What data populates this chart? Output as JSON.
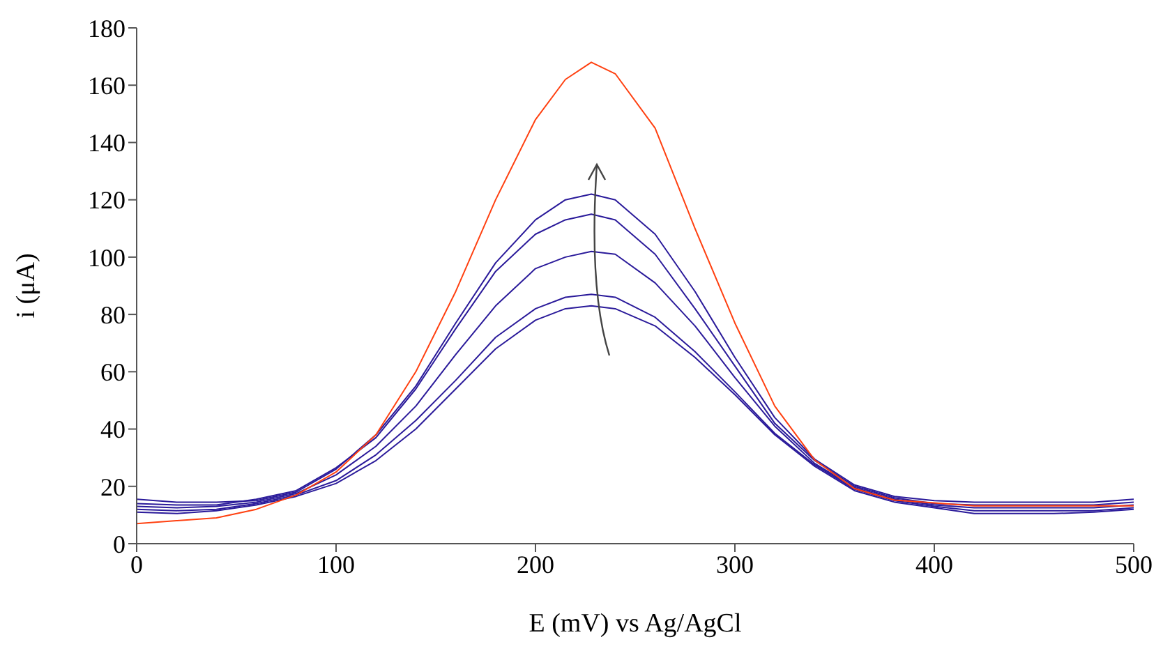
{
  "chart_data": {
    "type": "line",
    "xlabel": "E (mV) vs Ag/AgCl",
    "ylabel": "i (μA)",
    "x": [
      0,
      20,
      40,
      60,
      80,
      100,
      120,
      140,
      160,
      180,
      200,
      215,
      228,
      240,
      260,
      280,
      300,
      320,
      340,
      360,
      380,
      400,
      420,
      440,
      460,
      480,
      500
    ],
    "series": [
      {
        "color": "#2a1a9a",
        "values": [
          15.5,
          14.5,
          14.5,
          15,
          18,
          26,
          38,
          55,
          77,
          98,
          113,
          120,
          122,
          120,
          108,
          88,
          65,
          44,
          29.5,
          20.5,
          16.5,
          15,
          14.5,
          14.5,
          14.5,
          14.5,
          15.5
        ]
      },
      {
        "color": "#2a1a9a",
        "values": [
          14,
          13.5,
          13.5,
          15.5,
          18.5,
          26.5,
          37,
          54,
          75,
          95,
          108,
          113,
          115,
          113,
          101,
          82,
          62,
          42,
          29,
          20,
          16,
          14,
          13.5,
          13.5,
          13.5,
          13.5,
          14.5
        ]
      },
      {
        "color": "#2a1a9a",
        "values": [
          13,
          12.5,
          13,
          14.5,
          17.5,
          24,
          34,
          48,
          66,
          83,
          96,
          100,
          102,
          101,
          91,
          76,
          58,
          41,
          28,
          19.5,
          15.5,
          13.5,
          12.5,
          12.5,
          12.5,
          12.5,
          13.5
        ]
      },
      {
        "color": "#2a1a9a",
        "values": [
          12,
          11.5,
          12,
          14,
          17,
          22,
          31,
          43,
          57,
          72,
          82,
          86,
          87,
          86,
          79,
          67,
          53,
          38.5,
          27.5,
          19,
          15,
          13,
          11.5,
          11.5,
          11.5,
          11.5,
          12.5
        ]
      },
      {
        "color": "#2a1a9a",
        "values": [
          11,
          10.5,
          11.5,
          13.5,
          16.5,
          21,
          29,
          40,
          54,
          68,
          78,
          82,
          83,
          82,
          76,
          65,
          52,
          38,
          27,
          18.5,
          14.5,
          12.5,
          10.5,
          10.5,
          10.5,
          11,
          12
        ]
      },
      {
        "color": "#ff4010",
        "values": [
          7,
          8,
          9,
          12,
          17,
          25,
          38,
          60,
          88,
          120,
          148,
          162,
          168,
          164,
          145,
          110,
          77,
          48,
          29.2,
          19.2,
          15.2,
          14.2,
          13.2,
          13.2,
          13.2,
          13.2,
          13.2
        ]
      }
    ],
    "xlim": [
      0,
      500
    ],
    "xticks": [
      0,
      100,
      200,
      300,
      400,
      500
    ],
    "ylim": [
      0,
      180
    ],
    "yticks": [
      0,
      20,
      40,
      60,
      80,
      100,
      120,
      140,
      160,
      180
    ],
    "grid": false,
    "marker": "none",
    "line_style": "solid"
  }
}
